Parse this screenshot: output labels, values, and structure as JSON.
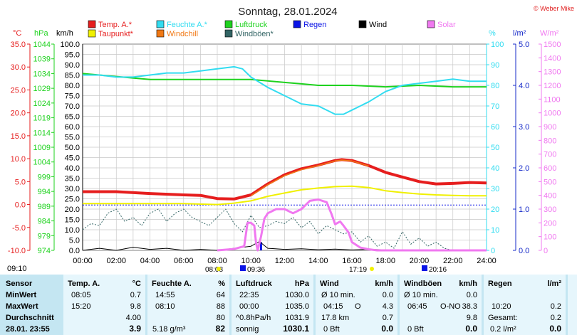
{
  "title": "Sonntag, 28.01.2024",
  "copyright": "© Weber Mike",
  "legend": [
    {
      "name": "Temp. A.*",
      "color": "#e61e1e"
    },
    {
      "name": "Feuchte A.*",
      "color": "#32dcf0"
    },
    {
      "name": "Luftdruck",
      "color": "#1ed21e"
    },
    {
      "name": "Regen",
      "color": "#0a14e6"
    },
    {
      "name": "Wind",
      "color": "#000000"
    },
    {
      "name": "Solar",
      "color": "#f078f0"
    },
    {
      "name": "Taupunkt*",
      "color": "#f0f000"
    },
    {
      "name": "Windchill",
      "color": "#f07814"
    },
    {
      "name": "Windböen*",
      "color": "#326464"
    }
  ],
  "axis_headers": {
    "celsius": "°C",
    "hpa": "hPa",
    "kmh": "km/h",
    "percent": "%",
    "rain": "l/m²",
    "solar": "W/m²"
  },
  "chart_data": {
    "type": "line",
    "x_ticks": [
      "00:00",
      "02:00",
      "04:00",
      "06:00",
      "08:00",
      "10:00",
      "12:00",
      "14:00",
      "16:00",
      "18:00",
      "20:00",
      "22:00",
      "24:00"
    ],
    "x_range": [
      0,
      24
    ],
    "celsius_ticks": [
      "35.0",
      "30.0",
      "25.0",
      "20.0",
      "15.0",
      "10.0",
      "5.0",
      "0.0",
      "-5.0",
      "-10.0"
    ],
    "celsius_range": [
      -10,
      35
    ],
    "hpa_ticks": [
      "1044",
      "1039",
      "1034",
      "1029",
      "1024",
      "1019",
      "1014",
      "1009",
      "1004",
      "999",
      "994",
      "989",
      "984",
      "979",
      "974"
    ],
    "hpa_range": [
      974,
      1044
    ],
    "kmh_ticks": [
      "100.0",
      "95.0",
      "90.0",
      "85.0",
      "80.0",
      "75.0",
      "70.0",
      "65.0",
      "60.0",
      "55.0",
      "50.0",
      "45.0",
      "40.0",
      "35.0",
      "30.0",
      "25.0",
      "20.0",
      "15.0",
      "10.0",
      "5.0",
      "0.0"
    ],
    "kmh_range": [
      0,
      100
    ],
    "percent_ticks": [
      "100",
      "90",
      "80",
      "70",
      "60",
      "50",
      "40",
      "30",
      "20",
      "10",
      "0"
    ],
    "percent_range": [
      0,
      100
    ],
    "rain_ticks": [
      "5.0",
      "4.0",
      "3.0",
      "2.0",
      "1.0",
      "0.0"
    ],
    "rain_range": [
      0,
      5
    ],
    "solar_ticks": [
      "1500",
      "1400",
      "1300",
      "1200",
      "1100",
      "1000",
      "900",
      "800",
      "700",
      "600",
      "500",
      "400",
      "300",
      "200",
      "100",
      "0"
    ],
    "solar_range": [
      0,
      1500
    ],
    "annotations": {
      "min_temp_time": "09:10",
      "sunrise": "08:08",
      "sunrise_marker": "09:36",
      "sunset": "17:19",
      "sunset_marker": "20:16"
    },
    "series": [
      {
        "name": "Temp. A.*",
        "axis": "celsius",
        "color": "#e61e1e",
        "points": [
          [
            0,
            2.8
          ],
          [
            2,
            2.8
          ],
          [
            4,
            2.4
          ],
          [
            6,
            2.1
          ],
          [
            7,
            2.0
          ],
          [
            8,
            1.3
          ],
          [
            9,
            1.2
          ],
          [
            10,
            2.1
          ],
          [
            11,
            4.5
          ],
          [
            12,
            6.5
          ],
          [
            13,
            7.8
          ],
          [
            14,
            8.6
          ],
          [
            15,
            9.6
          ],
          [
            15.4,
            9.8
          ],
          [
            16,
            9.6
          ],
          [
            17,
            8.5
          ],
          [
            18,
            7.0
          ],
          [
            19,
            6.0
          ],
          [
            20,
            5.0
          ],
          [
            21,
            4.5
          ],
          [
            22,
            4.6
          ],
          [
            23,
            4.8
          ],
          [
            24,
            4.7
          ]
        ]
      },
      {
        "name": "Windchill",
        "axis": "celsius",
        "color": "#f07814",
        "points": [
          [
            10,
            1.9
          ],
          [
            11,
            4.3
          ],
          [
            12,
            6.3
          ],
          [
            13,
            7.6
          ],
          [
            14,
            8.5
          ],
          [
            15,
            9.5
          ],
          [
            15.4,
            9.7
          ],
          [
            16,
            9.5
          ],
          [
            17,
            8.4
          ]
        ]
      },
      {
        "name": "Taupunkt*",
        "axis": "celsius",
        "color": "#f0f000",
        "points": [
          [
            0,
            0.2
          ],
          [
            2,
            0.2
          ],
          [
            4,
            0.2
          ],
          [
            6,
            0.2
          ],
          [
            8,
            0.0
          ],
          [
            9,
            0.3
          ],
          [
            10,
            0.8
          ],
          [
            11,
            1.8
          ],
          [
            12,
            2.5
          ],
          [
            13,
            3.2
          ],
          [
            14,
            3.6
          ],
          [
            15,
            3.9
          ],
          [
            16,
            4.0
          ],
          [
            17,
            3.7
          ],
          [
            18,
            3.0
          ],
          [
            19,
            2.6
          ],
          [
            20,
            2.3
          ],
          [
            21,
            2.1
          ],
          [
            22,
            2.0
          ],
          [
            23,
            1.9
          ],
          [
            24,
            1.9
          ]
        ]
      },
      {
        "name": "Feuchte A.*",
        "axis": "percent",
        "color": "#32dcf0",
        "points": [
          [
            0,
            85
          ],
          [
            1,
            85
          ],
          [
            2,
            84
          ],
          [
            3,
            84
          ],
          [
            4,
            85
          ],
          [
            5,
            86
          ],
          [
            6,
            86
          ],
          [
            7,
            87
          ],
          [
            8,
            88
          ],
          [
            9,
            89
          ],
          [
            9.5,
            88
          ],
          [
            10,
            84
          ],
          [
            11,
            79
          ],
          [
            12,
            75
          ],
          [
            13,
            71
          ],
          [
            14,
            70
          ],
          [
            15,
            66
          ],
          [
            15.5,
            66
          ],
          [
            16,
            68
          ],
          [
            17,
            72
          ],
          [
            18,
            77
          ],
          [
            19,
            80
          ],
          [
            20,
            81
          ],
          [
            21,
            82
          ],
          [
            22,
            83
          ],
          [
            23,
            82
          ],
          [
            24,
            82
          ]
        ]
      },
      {
        "name": "Luftdruck",
        "axis": "hpa",
        "color": "#1ed21e",
        "points": [
          [
            0,
            1034
          ],
          [
            2,
            1033
          ],
          [
            4,
            1032
          ],
          [
            6,
            1032
          ],
          [
            8,
            1032
          ],
          [
            10,
            1032
          ],
          [
            11,
            1031.5
          ],
          [
            12,
            1031
          ],
          [
            13,
            1030.5
          ],
          [
            14,
            1030
          ],
          [
            16,
            1030
          ],
          [
            18,
            1029.5
          ],
          [
            20,
            1030
          ],
          [
            22,
            1029.5
          ],
          [
            24,
            1029.5
          ]
        ]
      },
      {
        "name": "Solar",
        "axis": "solar",
        "color": "#f078f0",
        "points": [
          [
            8,
            0
          ],
          [
            9,
            10
          ],
          [
            9.6,
            30
          ],
          [
            9.8,
            200
          ],
          [
            10,
            200
          ],
          [
            10.2,
            180
          ],
          [
            10.3,
            60
          ],
          [
            10.4,
            0
          ],
          [
            10.6,
            100
          ],
          [
            10.8,
            230
          ],
          [
            11,
            270
          ],
          [
            11.5,
            300
          ],
          [
            12,
            300
          ],
          [
            12.5,
            270
          ],
          [
            13,
            300
          ],
          [
            13.5,
            360
          ],
          [
            14,
            370
          ],
          [
            14.5,
            350
          ],
          [
            14.8,
            260
          ],
          [
            15,
            190
          ],
          [
            15.3,
            210
          ],
          [
            15.5,
            180
          ],
          [
            15.8,
            130
          ],
          [
            16,
            60
          ],
          [
            16.5,
            20
          ],
          [
            17,
            8
          ],
          [
            17.5,
            0
          ],
          [
            24,
            0
          ]
        ]
      },
      {
        "name": "Wind",
        "axis": "kmh",
        "color": "#000000",
        "points": [
          [
            0,
            0
          ],
          [
            1,
            1
          ],
          [
            2,
            0
          ],
          [
            3,
            1.5
          ],
          [
            4,
            0.5
          ],
          [
            5,
            1
          ],
          [
            6,
            0
          ],
          [
            7,
            0.5
          ],
          [
            8,
            0
          ],
          [
            9,
            1
          ],
          [
            10,
            2
          ],
          [
            10.5,
            4.3
          ],
          [
            11,
            1
          ],
          [
            12,
            0.5
          ],
          [
            13,
            0.8
          ],
          [
            14,
            0.3
          ],
          [
            15,
            0.6
          ],
          [
            16,
            0.2
          ],
          [
            17,
            0.5
          ],
          [
            18,
            0.3
          ],
          [
            19,
            0.1
          ],
          [
            20,
            0.2
          ],
          [
            21,
            0
          ],
          [
            24,
            0
          ]
        ]
      },
      {
        "name": "Windböen*",
        "axis": "kmh",
        "color": "#326464",
        "dashed": true,
        "points": [
          [
            0,
            10
          ],
          [
            0.5,
            13
          ],
          [
            1,
            12
          ],
          [
            1.5,
            18
          ],
          [
            2,
            20
          ],
          [
            2.5,
            14
          ],
          [
            3,
            16
          ],
          [
            3.5,
            12
          ],
          [
            4,
            18
          ],
          [
            4.5,
            20
          ],
          [
            5,
            14
          ],
          [
            5.5,
            18
          ],
          [
            6,
            20
          ],
          [
            6.5,
            16
          ],
          [
            7,
            14
          ],
          [
            7.5,
            12
          ],
          [
            8,
            16
          ],
          [
            8.5,
            20
          ],
          [
            9,
            13
          ],
          [
            9.5,
            9
          ],
          [
            10,
            17
          ],
          [
            10.5,
            11
          ],
          [
            11,
            12
          ],
          [
            11.5,
            14
          ],
          [
            12,
            13
          ],
          [
            12.5,
            16
          ],
          [
            13,
            11
          ],
          [
            13.5,
            14
          ],
          [
            14,
            8
          ],
          [
            14.5,
            12
          ],
          [
            15,
            10
          ],
          [
            15.5,
            8
          ],
          [
            16,
            9
          ],
          [
            16.5,
            4
          ],
          [
            17,
            7
          ],
          [
            17.5,
            2
          ],
          [
            18,
            4
          ],
          [
            18.5,
            1
          ],
          [
            19,
            9
          ],
          [
            19.5,
            3
          ],
          [
            20,
            6
          ],
          [
            20.5,
            2
          ],
          [
            21,
            4
          ],
          [
            21.5,
            1
          ],
          [
            22,
            0
          ]
        ]
      }
    ],
    "rain_line": {
      "axis": "rain",
      "value": 1.1,
      "color": "#0a14e6"
    },
    "rain_bars": [
      {
        "x": 10.6,
        "value": 0.2
      }
    ]
  },
  "table": {
    "rows": [
      "Sensor",
      "MinWert",
      "MaxWert",
      "Durchschnitt",
      "28.01. 23:55"
    ],
    "temp": {
      "header": "Temp. A.",
      "unit": "°C",
      "min_time": "08:05",
      "min": "0.7",
      "max_time": "15:20",
      "max": "9.8",
      "avg": "4.00",
      "current": "3.9"
    },
    "feuchte": {
      "header": "Feuchte A.",
      "unit": "%",
      "min_time": "14:55",
      "min": "64",
      "max_time": "08:10",
      "max": "88",
      "avg": "80",
      "abs": "5.18 g/m³",
      "current": "82"
    },
    "luftdruck": {
      "header": "Luftdruck",
      "unit": "hPa",
      "min_time": "22:35",
      "min": "1030.0",
      "max_time": "00:00",
      "max": "1035.0",
      "trend": "^0.8hPa/h",
      "avg": "1031.9",
      "weather": "sonnig",
      "current": "1030.1"
    },
    "wind": {
      "header": "Wind",
      "unit": "km/h",
      "avg_label": "Ø 10 min.",
      "avg": "0.0",
      "max_time": "04:15",
      "max_dir": "O",
      "max": "4.3",
      "distance": "17.8 km",
      "dist_val": "0.7",
      "bft": "0 Bft",
      "current": "0.0"
    },
    "windboen": {
      "header": "Windböen",
      "unit": "km/h",
      "avg_label": "Ø 10 min.",
      "avg": "0.0",
      "max_time": "06:45",
      "max_dir": "O-NO",
      "max": "38.3",
      "avg_val": "9.8",
      "bft": "0 Bft",
      "current": "0.0"
    },
    "regen": {
      "header": "Regen",
      "unit": "l/m²",
      "max_time": "10:20",
      "max": "0.2",
      "total_label": "Gesamt:",
      "total": "0.2",
      "rate": "0.2 l/m²",
      "current": "0.0"
    }
  }
}
